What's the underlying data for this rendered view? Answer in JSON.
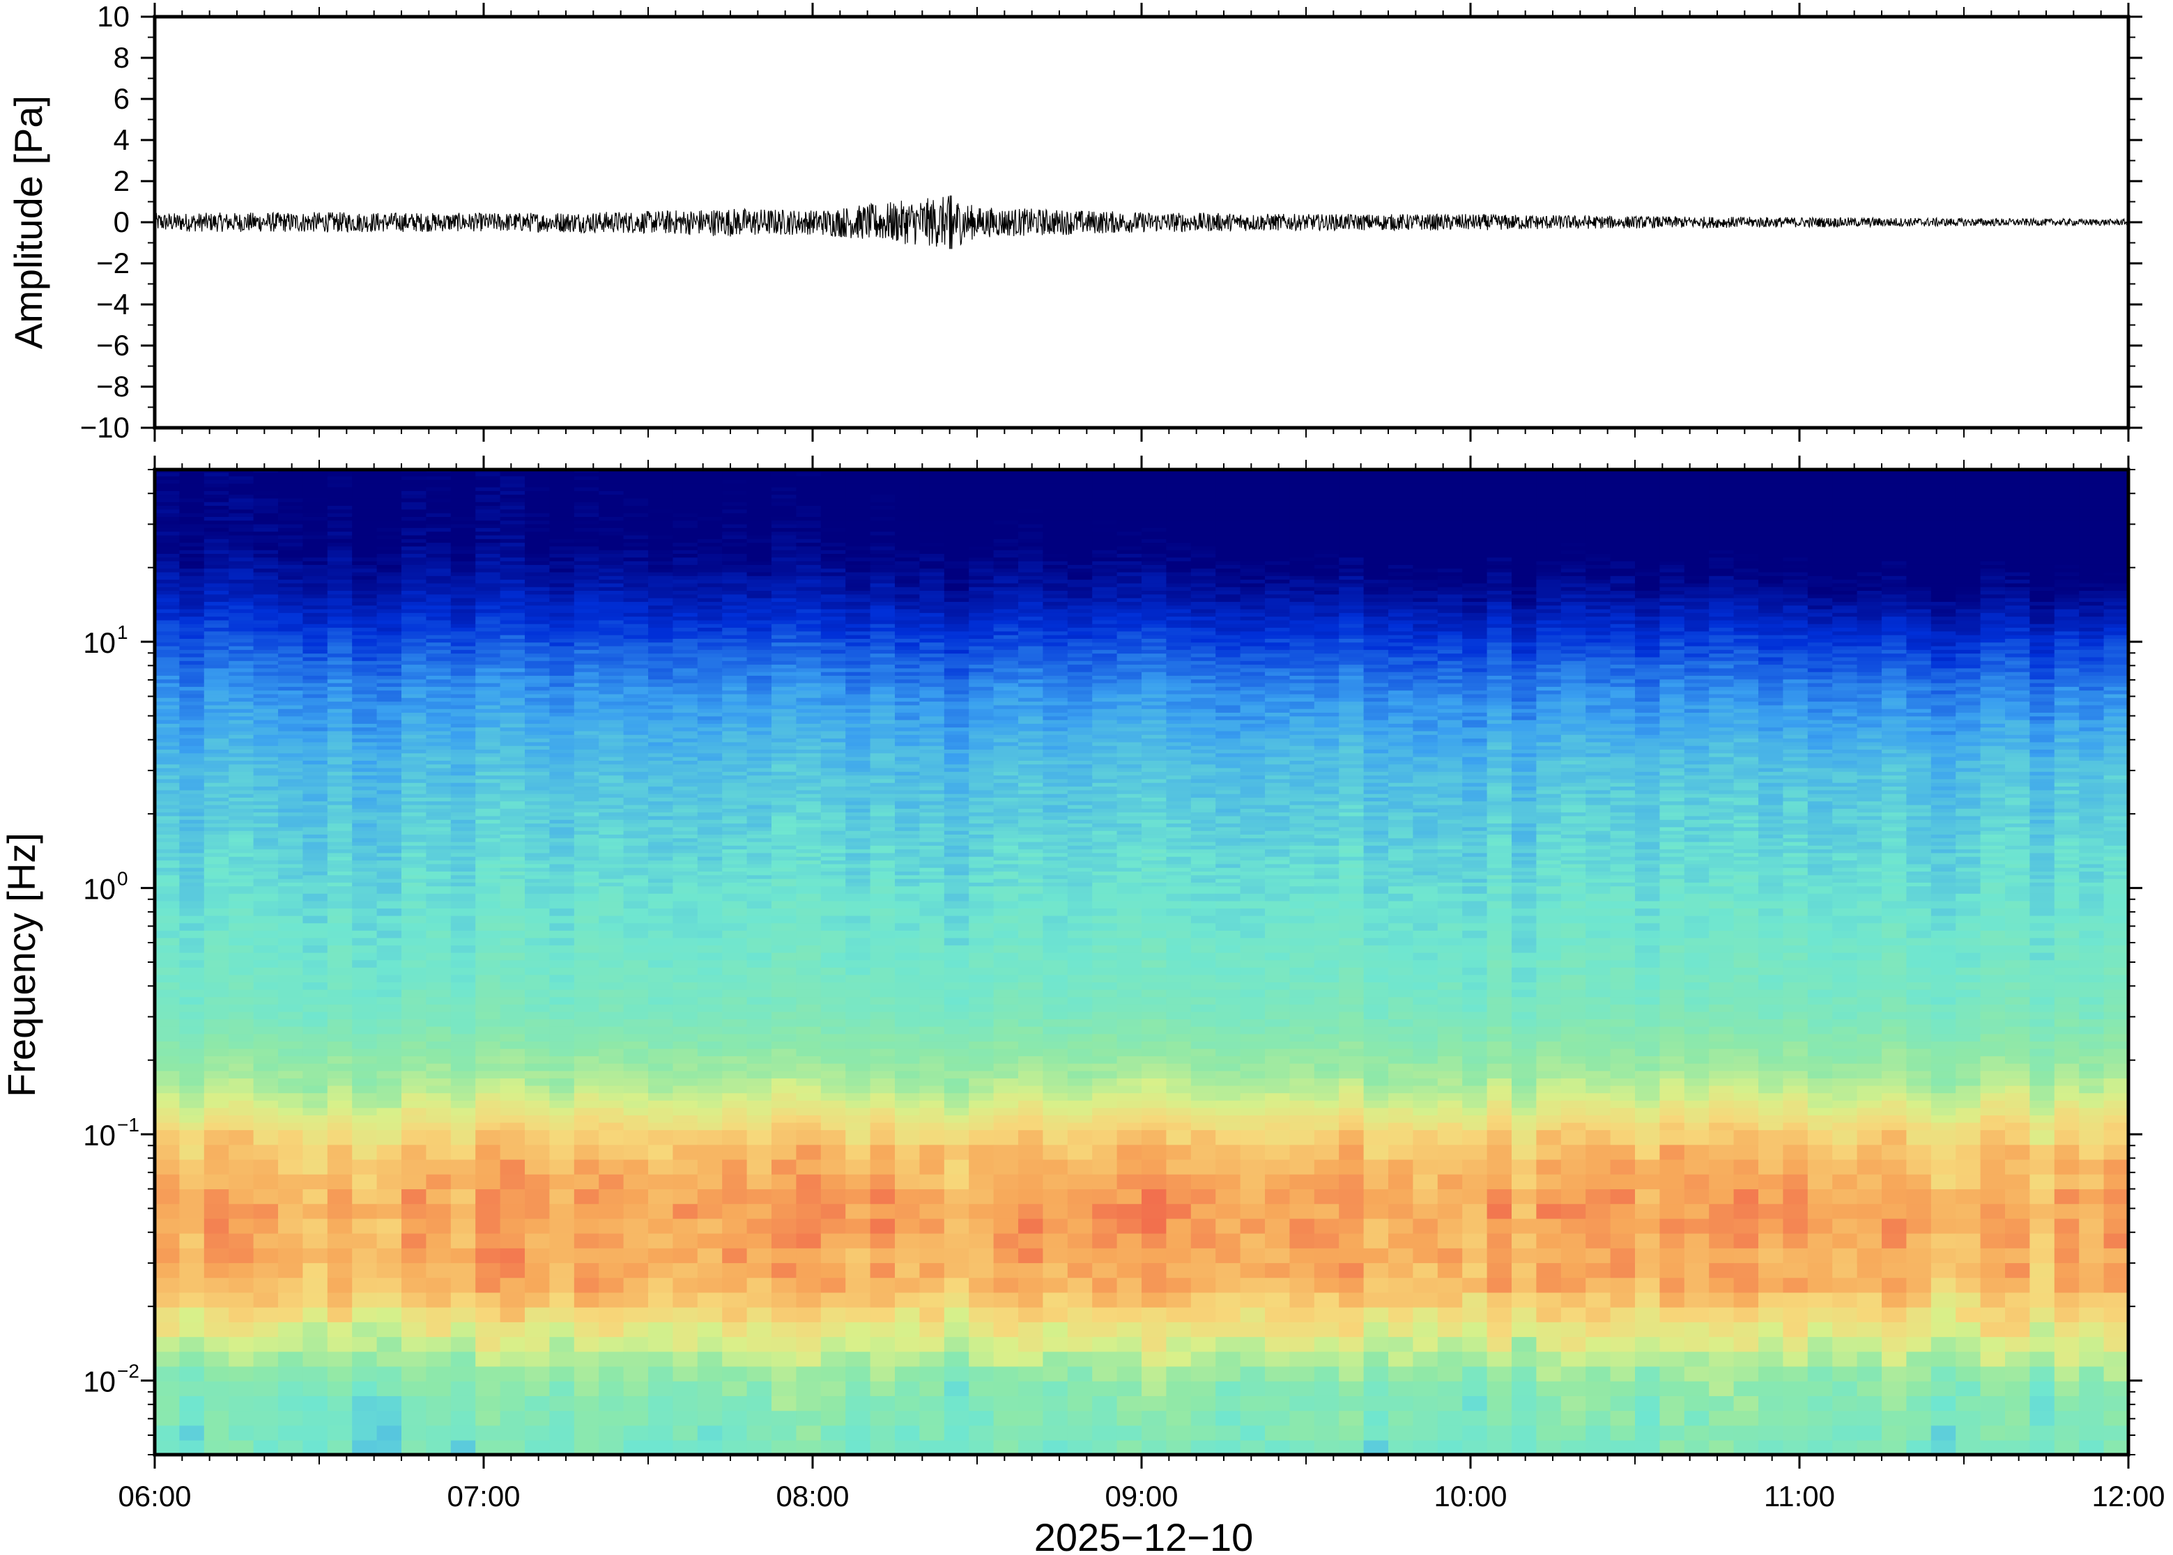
{
  "chart_data": [
    {
      "type": "line",
      "panel": "waveform",
      "ylabel": "Amplitude [Pa]",
      "ylim": [
        -10,
        10
      ],
      "y_ticks": [
        {
          "value": 10,
          "label": "10"
        },
        {
          "value": 8,
          "label": "8"
        },
        {
          "value": 6,
          "label": "6"
        },
        {
          "value": 4,
          "label": "4"
        },
        {
          "value": 2,
          "label": "2"
        },
        {
          "value": 0,
          "label": "0"
        },
        {
          "value": -2,
          "label": "−2"
        },
        {
          "value": -4,
          "label": "−4"
        },
        {
          "value": -6,
          "label": "−6"
        },
        {
          "value": -8,
          "label": "−8"
        },
        {
          "value": -10,
          "label": "−10"
        }
      ],
      "xlim": [
        "2025-12-10T06:00",
        "2025-12-10T12:00"
      ],
      "series": [
        {
          "color": "#000000",
          "envelope_hours": [
            6.0,
            6.5,
            7.0,
            7.5,
            7.75,
            8.0,
            8.42,
            8.5,
            9.0,
            9.5,
            10.0,
            10.5,
            11.0,
            11.5,
            12.0
          ],
          "envelope_pa": [
            0.45,
            0.5,
            0.45,
            0.55,
            0.7,
            0.6,
            1.3,
            0.75,
            0.5,
            0.4,
            0.4,
            0.3,
            0.25,
            0.2,
            0.15
          ]
        }
      ],
      "grid": false
    },
    {
      "type": "heatmap",
      "panel": "spectrogram",
      "ylabel": "Frequency [Hz]",
      "xlabel": "2025−12−10",
      "y_scale": "log",
      "ylim": [
        0.005,
        50
      ],
      "y_ticks": [
        {
          "value": 10,
          "base": "10",
          "exp": "1"
        },
        {
          "value": 1,
          "base": "10",
          "exp": "0"
        },
        {
          "value": 0.1,
          "base": "10",
          "exp": "−1"
        },
        {
          "value": 0.01,
          "base": "10",
          "exp": "−2"
        }
      ],
      "xlim": [
        "2025-12-10T06:00",
        "2025-12-10T12:00"
      ],
      "x_ticks": [
        {
          "value": "2025-12-10T06:00",
          "label": "06:00"
        },
        {
          "value": "2025-12-10T07:00",
          "label": "07:00"
        },
        {
          "value": "2025-12-10T08:00",
          "label": "08:00"
        },
        {
          "value": "2025-12-10T09:00",
          "label": "09:00"
        },
        {
          "value": "2025-12-10T10:00",
          "label": "10:00"
        },
        {
          "value": "2025-12-10T11:00",
          "label": "11:00"
        },
        {
          "value": "2025-12-10T12:00",
          "label": "12:00"
        }
      ],
      "colormap": [
        "#00007f",
        "#0030d8",
        "#3aa0f0",
        "#6fe6d0",
        "#8fe8a8",
        "#d8f08a",
        "#f7d77a",
        "#f7a85a",
        "#f0604a"
      ],
      "grid": false
    }
  ]
}
